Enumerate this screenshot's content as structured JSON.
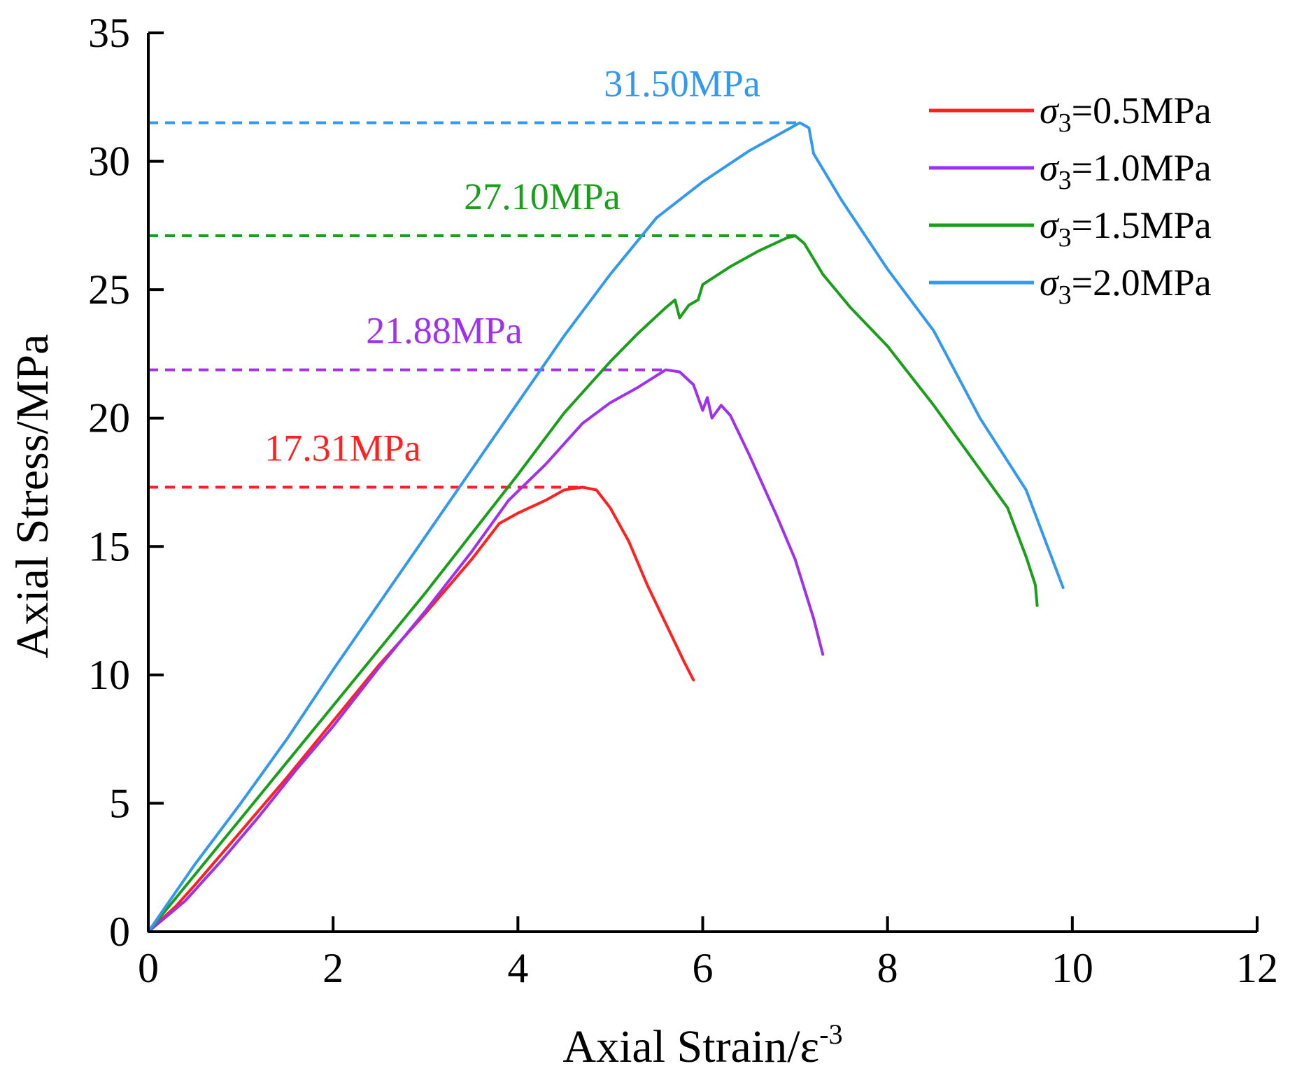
{
  "chart_data": {
    "type": "line",
    "xlabel": "Axial Strain/ε",
    "xlabel_sup": "-3",
    "ylabel": "Axial Stress/MPa",
    "xlim": [
      0,
      12
    ],
    "ylim": [
      0,
      35
    ],
    "x_ticks": [
      "0",
      "2",
      "4",
      "6",
      "8",
      "10",
      "12"
    ],
    "y_ticks": [
      "0",
      "5",
      "10",
      "15",
      "20",
      "25",
      "30",
      "35"
    ],
    "legend_position": "top-right",
    "series": [
      {
        "name": "σ3=0.5MPa",
        "legend_sigma": "σ",
        "legend_sub": "3",
        "legend_value": "=0.5MPa",
        "color": "#ff2020",
        "peak": 17.31,
        "peak_label": "17.31MPa",
        "points": [
          [
            0,
            0
          ],
          [
            0.3,
            1.0
          ],
          [
            0.5,
            1.8
          ],
          [
            1.0,
            3.9
          ],
          [
            1.5,
            6.0
          ],
          [
            2.0,
            8.2
          ],
          [
            2.5,
            10.4
          ],
          [
            3.0,
            12.4
          ],
          [
            3.5,
            14.5
          ],
          [
            3.8,
            15.9
          ],
          [
            4.0,
            16.3
          ],
          [
            4.3,
            16.8
          ],
          [
            4.5,
            17.2
          ],
          [
            4.7,
            17.31
          ],
          [
            4.85,
            17.2
          ],
          [
            5.0,
            16.5
          ],
          [
            5.2,
            15.2
          ],
          [
            5.4,
            13.5
          ],
          [
            5.6,
            12.0
          ],
          [
            5.8,
            10.5
          ],
          [
            5.9,
            9.8
          ]
        ]
      },
      {
        "name": "σ3=1.0MPa",
        "legend_sigma": "σ",
        "legend_sub": "3",
        "legend_value": "=1.0MPa",
        "color": "#a030f0",
        "peak": 21.88,
        "peak_label": "21.88MPa",
        "points": [
          [
            0,
            0
          ],
          [
            0.4,
            1.2
          ],
          [
            0.8,
            2.8
          ],
          [
            1.2,
            4.5
          ],
          [
            1.6,
            6.3
          ],
          [
            2.0,
            8.0
          ],
          [
            2.5,
            10.3
          ],
          [
            3.0,
            12.5
          ],
          [
            3.5,
            14.8
          ],
          [
            3.9,
            16.8
          ],
          [
            4.3,
            18.2
          ],
          [
            4.7,
            19.8
          ],
          [
            5.0,
            20.6
          ],
          [
            5.3,
            21.2
          ],
          [
            5.6,
            21.88
          ],
          [
            5.75,
            21.8
          ],
          [
            5.9,
            21.3
          ],
          [
            6.0,
            20.3
          ],
          [
            6.05,
            20.8
          ],
          [
            6.1,
            20.0
          ],
          [
            6.2,
            20.5
          ],
          [
            6.3,
            20.1
          ],
          [
            6.5,
            18.6
          ],
          [
            6.8,
            16.2
          ],
          [
            7.0,
            14.5
          ],
          [
            7.2,
            12.2
          ],
          [
            7.3,
            10.8
          ]
        ]
      },
      {
        "name": "σ3=1.5MPa",
        "legend_sigma": "σ",
        "legend_sub": "3",
        "legend_value": "=1.5MPa",
        "color": "#1a9f1a",
        "peak": 27.1,
        "peak_label": "27.10MPa",
        "points": [
          [
            0,
            0
          ],
          [
            0.5,
            2.2
          ],
          [
            1.0,
            4.4
          ],
          [
            1.5,
            6.6
          ],
          [
            2.0,
            8.8
          ],
          [
            2.5,
            11.0
          ],
          [
            3.0,
            13.2
          ],
          [
            3.5,
            15.5
          ],
          [
            4.0,
            17.8
          ],
          [
            4.5,
            20.2
          ],
          [
            5.0,
            22.2
          ],
          [
            5.3,
            23.3
          ],
          [
            5.6,
            24.3
          ],
          [
            5.7,
            24.6
          ],
          [
            5.75,
            23.9
          ],
          [
            5.85,
            24.4
          ],
          [
            5.95,
            24.6
          ],
          [
            6.0,
            25.2
          ],
          [
            6.3,
            25.9
          ],
          [
            6.6,
            26.5
          ],
          [
            6.9,
            27.0
          ],
          [
            7.0,
            27.1
          ],
          [
            7.1,
            26.8
          ],
          [
            7.3,
            25.6
          ],
          [
            7.6,
            24.3
          ],
          [
            8.0,
            22.8
          ],
          [
            8.5,
            20.5
          ],
          [
            9.0,
            18.0
          ],
          [
            9.3,
            16.5
          ],
          [
            9.5,
            14.6
          ],
          [
            9.6,
            13.5
          ],
          [
            9.62,
            12.7
          ]
        ]
      },
      {
        "name": "σ3=2.0MPa",
        "legend_sigma": "σ",
        "legend_sub": "3",
        "legend_value": "=2.0MPa",
        "color": "#3399ee",
        "peak": 31.5,
        "peak_label": "31.50MPa",
        "points": [
          [
            0,
            0
          ],
          [
            0.5,
            2.6
          ],
          [
            1.0,
            5.0
          ],
          [
            1.5,
            7.5
          ],
          [
            2.0,
            10.2
          ],
          [
            2.5,
            12.8
          ],
          [
            3.0,
            15.4
          ],
          [
            3.5,
            18.0
          ],
          [
            4.0,
            20.6
          ],
          [
            4.5,
            23.2
          ],
          [
            5.0,
            25.6
          ],
          [
            5.5,
            27.8
          ],
          [
            6.0,
            29.2
          ],
          [
            6.5,
            30.4
          ],
          [
            6.8,
            31.0
          ],
          [
            7.05,
            31.5
          ],
          [
            7.15,
            31.3
          ],
          [
            7.2,
            30.3
          ],
          [
            7.5,
            28.5
          ],
          [
            8.0,
            25.8
          ],
          [
            8.5,
            23.4
          ],
          [
            9.0,
            20.0
          ],
          [
            9.5,
            17.2
          ],
          [
            9.9,
            13.4
          ]
        ]
      }
    ]
  }
}
